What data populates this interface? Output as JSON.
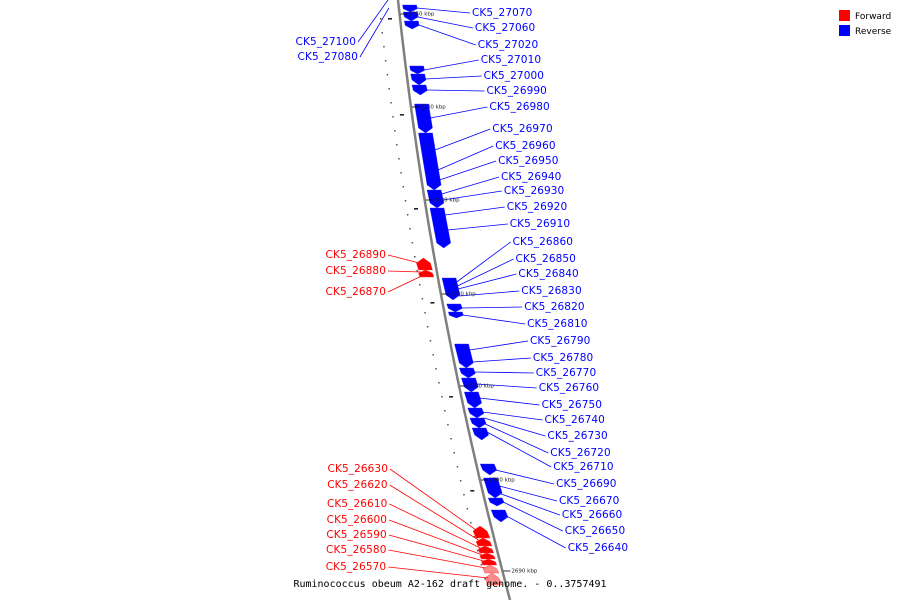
{
  "caption": "Ruminococcus obeum A2-162 draft genome. - 0..3757491",
  "legend": [
    {
      "label": "Forward",
      "color": "#ff0000"
    },
    {
      "label": "Reverse",
      "color": "#0000ff"
    }
  ],
  "colors": {
    "forward": "#ff0000",
    "reverse": "#0000ff",
    "backbone": "#7f7f7f"
  },
  "ticks": [
    "2750 kbp",
    "2740 kbp",
    "2730 kbp",
    "2720 kbp",
    "2710 kbp",
    "2700 kbp",
    "2690 kbp"
  ],
  "reverse_genes": [
    "CK5_27070",
    "CK5_27060",
    "CK5_27020",
    "CK5_27010",
    "CK5_27000",
    "CK5_26990",
    "CK5_26980",
    "CK5_26970",
    "CK5_26960",
    "CK5_26950",
    "CK5_26940",
    "CK5_26930",
    "CK5_26920",
    "CK5_26910",
    "CK5_26860",
    "CK5_26850",
    "CK5_26840",
    "CK5_26830",
    "CK5_26820",
    "CK5_26810",
    "CK5_26790",
    "CK5_26780",
    "CK5_26770",
    "CK5_26760",
    "CK5_26750",
    "CK5_26740",
    "CK5_26730",
    "CK5_26720",
    "CK5_26710",
    "CK5_26690",
    "CK5_26670",
    "CK5_26660",
    "CK5_26650",
    "CK5_26640"
  ],
  "reverse_left_genes": [
    "CK5_27100",
    "CK5_27080"
  ],
  "forward_genes": [
    "CK5_26890",
    "CK5_26880",
    "CK5_26870",
    "CK5_26630",
    "CK5_26620",
    "CK5_26610",
    "CK5_26600",
    "CK5_26590",
    "CK5_26580",
    "CK5_26570"
  ]
}
